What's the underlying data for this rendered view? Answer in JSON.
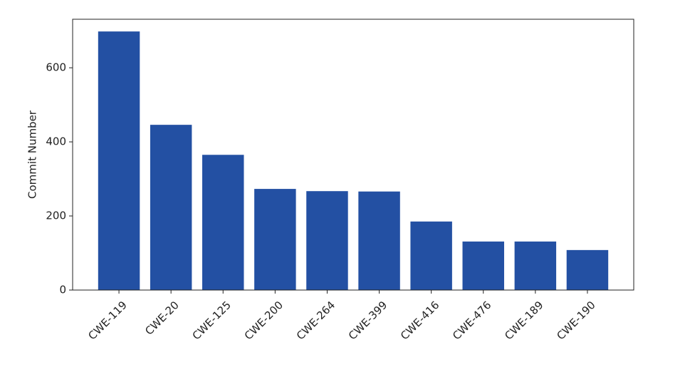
{
  "chart_data": {
    "type": "bar",
    "y_label": "Commit Number",
    "categories": [
      "CWE-119",
      "CWE-20",
      "CWE-125",
      "CWE-200",
      "CWE-264",
      "CWE-399",
      "CWE-416",
      "CWE-476",
      "CWE-189",
      "CWE-190"
    ],
    "values": [
      698,
      446,
      365,
      273,
      267,
      266,
      185,
      131,
      131,
      108
    ],
    "color": "#2350a3",
    "ylim": [
      0,
      731
    ],
    "yticks": [
      0,
      200,
      400,
      600
    ],
    "grid": false
  }
}
